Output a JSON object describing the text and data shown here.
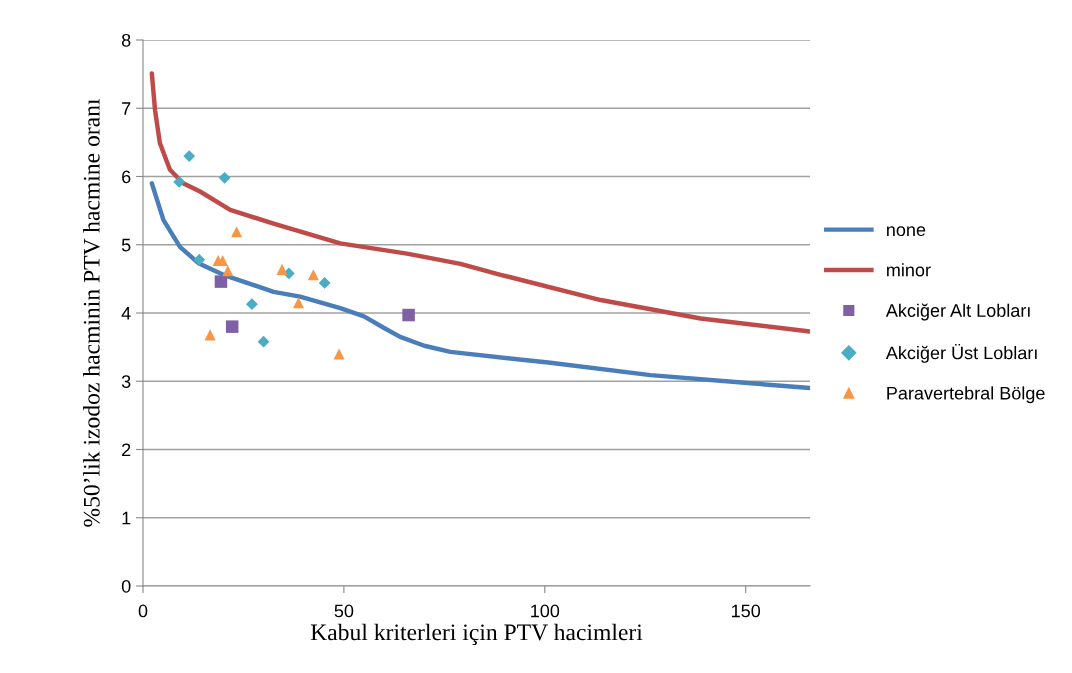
{
  "chart_data": {
    "type": "scatter",
    "xlabel": "Kabul kriterleri için PTV hacimleri",
    "ylabel": "%50’lik izodoz hacminin PTV hacmine oranı",
    "xlim": [
      0,
      166
    ],
    "xticks": [
      0,
      50,
      100,
      150
    ],
    "ylim": [
      0,
      8
    ],
    "yticks": [
      0,
      1,
      2,
      3,
      4,
      5,
      6,
      7,
      8
    ],
    "grid": "y",
    "legend": "right",
    "series": [
      {
        "name": "none",
        "type": "line",
        "color": "#4a7ebb",
        "marker": "none",
        "line_style": "solid",
        "x": [
          2.2,
          5.1,
          9.2,
          13.8,
          20,
          32.5,
          39.1,
          49.1,
          51.6,
          55,
          60,
          64,
          70,
          76.5,
          101.4,
          126.3,
          151.3,
          166
        ],
        "values": [
          5.9,
          5.36,
          4.97,
          4.73,
          4.56,
          4.31,
          4.24,
          4.07,
          4.02,
          3.95,
          3.78,
          3.65,
          3.52,
          3.43,
          3.27,
          3.09,
          2.97,
          2.9
        ]
      },
      {
        "name": "minor",
        "type": "line",
        "color": "#be4b48",
        "marker": "none",
        "line_style": "solid",
        "x": [
          2.2,
          3,
          4.2,
          6.7,
          10,
          14.2,
          21.7,
          32.5,
          49.1,
          65.7,
          79,
          89,
          113.9,
          138.8,
          166
        ],
        "values": [
          7.51,
          6.97,
          6.49,
          6.1,
          5.9,
          5.78,
          5.51,
          5.31,
          5.02,
          4.87,
          4.72,
          4.56,
          4.19,
          3.92,
          3.73
        ]
      },
      {
        "name": "Akciğer Alt Lobları",
        "color": "#7f5fa5",
        "marker": "square",
        "x": [
          19.4,
          22.2,
          66.1
        ],
        "values": [
          4.46,
          3.8,
          3.97
        ]
      },
      {
        "name": "Akciğer Üst Lobları",
        "color": "#4bacc6",
        "marker": "diamond",
        "x": [
          11.5,
          9,
          20.3,
          14,
          36.3,
          45.2,
          27.1,
          30
        ],
        "values": [
          6.3,
          5.92,
          5.98,
          4.78,
          4.58,
          4.44,
          4.13,
          3.58
        ]
      },
      {
        "name": "Paravertebral Bölge",
        "color": "#f79646",
        "marker": "triangle",
        "x": [
          23.3,
          18.7,
          19.8,
          21.1,
          34.6,
          42.4,
          38.7,
          16.7,
          48.8
        ],
        "values": [
          5.19,
          4.77,
          4.77,
          4.62,
          4.64,
          4.56,
          4.15,
          3.68,
          3.4
        ]
      }
    ]
  }
}
